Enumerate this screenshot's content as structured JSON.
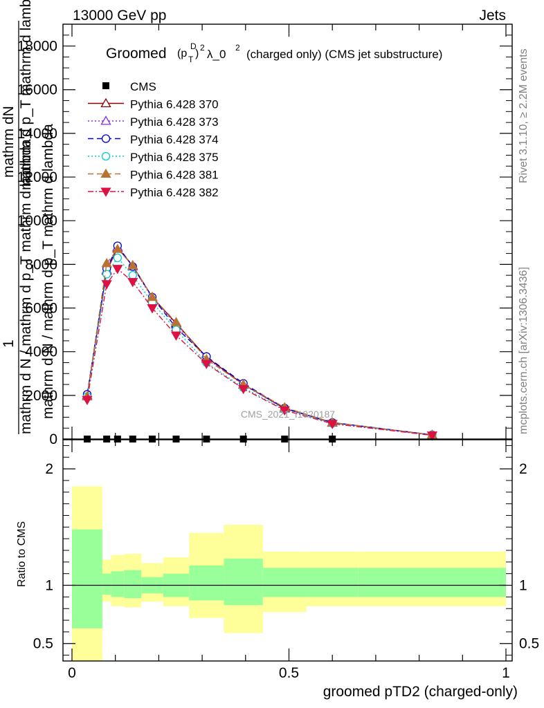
{
  "header": {
    "left": "13000 GeV pp",
    "right": "Jets"
  },
  "side_labels": {
    "rivet": "Rivet 3.1.10, ≥ 2.2M events",
    "mcplots": "mcplots.cern.ch [arXiv:1306.3436]"
  },
  "watermark": "CMS_2021_I1920187",
  "chart_data": [
    {
      "type": "line",
      "title_parts": {
        "prefix": "Groomed",
        "p": "(p",
        "sub_T": "T",
        "sup_D": "D",
        "close": ")",
        "sup_2": "2",
        "lambda": "λ_0",
        "sup_lambda": "2",
        "suffix": "(charged only) (CMS jet substructure)"
      },
      "ylabel_parts": {
        "numerator": "1",
        "denominator": "mathrm d N / mathrm d p_T mathrm d lambda",
        "stacked": "mathrm d N / mathrm d p_T mathrm d lambda",
        "stacked2": "mathrm d^2N",
        "line1": "mathrm dN",
        "line2": "mathrm d p_T mathrm d lambda"
      },
      "xlim": [
        0,
        1
      ],
      "ylim": [
        0,
        19000
      ],
      "yticks": [
        0,
        2000,
        4000,
        6000,
        8000,
        10000,
        12000,
        14000,
        16000,
        18000
      ],
      "ytick_labels": [
        "0",
        "2000",
        "4000",
        "6000",
        "8000",
        "10000",
        "12000",
        "14000",
        "16000",
        "18000"
      ],
      "x": [
        0.035,
        0.08,
        0.105,
        0.14,
        0.185,
        0.24,
        0.31,
        0.395,
        0.49,
        0.6,
        0.83
      ],
      "cms": {
        "name": "CMS",
        "x": [
          0.035,
          0.08,
          0.105,
          0.14,
          0.185,
          0.24,
          0.31,
          0.395,
          0.49,
          0.6
        ],
        "values": [
          0,
          0,
          0,
          0,
          0,
          0,
          0,
          0,
          0,
          0
        ]
      },
      "series": [
        {
          "name": "Pythia 6.428 370",
          "color": "#8b0000",
          "marker": "triangle-open",
          "dash": "",
          "values": [
            2000,
            7700,
            8750,
            7950,
            6500,
            5300,
            3750,
            2500,
            1400,
            750,
            190
          ]
        },
        {
          "name": "Pythia 6.428 373",
          "color": "#8a2be2",
          "marker": "triangle-open",
          "dash": "2,3",
          "values": [
            2000,
            7750,
            8800,
            7900,
            6450,
            5250,
            3700,
            2480,
            1390,
            740,
            185
          ]
        },
        {
          "name": "Pythia 6.428 374",
          "color": "#0000cc",
          "marker": "circle-open",
          "dash": "8,5",
          "values": [
            2050,
            7800,
            8850,
            7900,
            6500,
            5100,
            3780,
            2550,
            1420,
            760,
            195
          ]
        },
        {
          "name": "Pythia 6.428 375",
          "color": "#00cccc",
          "marker": "circle-open",
          "dash": "2,3",
          "values": [
            1950,
            7550,
            8300,
            7500,
            6250,
            5000,
            3500,
            2350,
            1350,
            720,
            180
          ]
        },
        {
          "name": "Pythia 6.428 381",
          "color": "#b87333",
          "marker": "triangle-filled",
          "dash": "8,5",
          "values": [
            1950,
            8050,
            8700,
            7950,
            6500,
            5350,
            3650,
            2500,
            1450,
            760,
            190
          ]
        },
        {
          "name": "Pythia 6.428 382",
          "color": "#dd1144",
          "marker": "triangle-down-filled",
          "dash": "8,3,2,3",
          "values": [
            1800,
            7100,
            7800,
            7200,
            6000,
            4750,
            3450,
            2300,
            1320,
            700,
            170
          ]
        }
      ]
    },
    {
      "type": "area",
      "ylabel": "Ratio to CMS",
      "xlabel": "groomed pTD2 (charged-only)",
      "xlim": [
        0,
        1
      ],
      "ylim": [
        0.35,
        2.25
      ],
      "xticks": [
        0,
        0.5,
        1
      ],
      "xtick_labels": [
        "0",
        "0.5",
        "1"
      ],
      "yticks": [
        0.5,
        1,
        2
      ],
      "ytick_labels": [
        "0.5",
        "1",
        "2"
      ],
      "bins": [
        0,
        0.07,
        0.09,
        0.12,
        0.16,
        0.21,
        0.27,
        0.35,
        0.44,
        0.54,
        0.66,
        1.0
      ],
      "band_inner": {
        "color": "#99ff99",
        "lo": [
          0.63,
          0.92,
          0.9,
          0.89,
          0.93,
          0.9,
          0.87,
          0.83,
          0.9,
          0.9,
          0.9
        ],
        "hi": [
          1.48,
          1.1,
          1.12,
          1.13,
          1.07,
          1.1,
          1.17,
          1.23,
          1.15,
          1.15,
          1.15
        ]
      },
      "band_outer": {
        "color": "#ffff99",
        "lo": [
          0.35,
          0.86,
          0.82,
          0.81,
          0.86,
          0.82,
          0.72,
          0.59,
          0.77,
          0.82,
          0.82
        ],
        "hi": [
          1.85,
          1.22,
          1.26,
          1.27,
          1.19,
          1.24,
          1.45,
          1.52,
          1.29,
          1.29,
          1.29
        ]
      },
      "reference": 1
    }
  ]
}
